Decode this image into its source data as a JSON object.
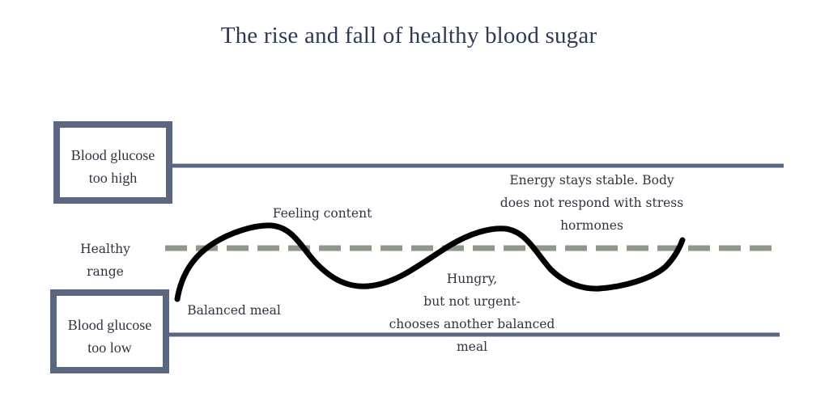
{
  "title": "The rise and fall of  healthy blood sugar",
  "boxes": {
    "high": "Blood glucose\ntoo high",
    "low": "Blood glucose\ntoo low"
  },
  "labels": {
    "healthy_range": "Healthy\nrange",
    "feeling_content": "Feeling content",
    "balanced_meal": "Balanced meal",
    "hungry": "Hungry,\nbut not urgent-\nchooses another balanced\nmeal",
    "energy": "Energy stays stable. Body\ndoes not respond with stress\nhormones"
  },
  "colors": {
    "title_text": "#2e3a55",
    "threshold_line": "#5b6781",
    "healthy_dashed_line": "#8e978a",
    "glucose_curve": "#000000"
  }
}
